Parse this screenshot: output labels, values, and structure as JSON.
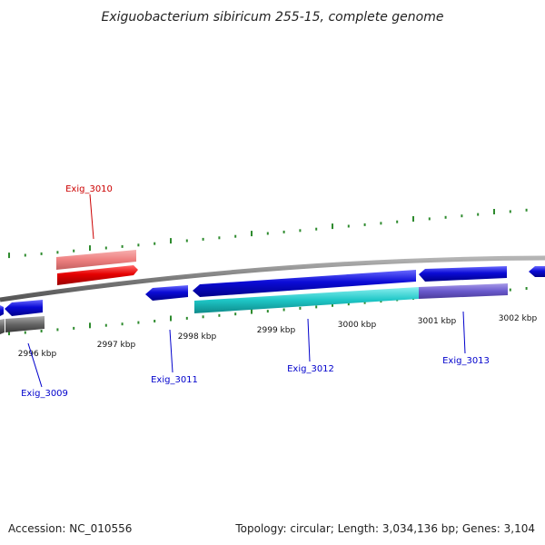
{
  "title": "Exiguobacterium sibiricum 255-15, complete genome",
  "footer": {
    "accession": "Accession: NC_010556",
    "summary": "Topology: circular; Length: 3,034,136 bp; Genes: 3,104"
  },
  "scale_labels": [
    "2996 kbp",
    "2997 kbp",
    "2998 kbp",
    "2999 kbp",
    "3000 kbp",
    "3001 kbp",
    "3002 kbp"
  ],
  "gene_labels": [
    {
      "name": "Exig_3009",
      "color": "#0000cc"
    },
    {
      "name": "Exig_3010",
      "color": "#cc0000"
    },
    {
      "name": "Exig_3011",
      "color": "#0000cc"
    },
    {
      "name": "Exig_3012",
      "color": "#0000cc"
    },
    {
      "name": "Exig_3013",
      "color": "#0000cc"
    }
  ],
  "colors": {
    "backbone": "#888888",
    "gene_blue": "#0b0bd6",
    "gene_red": "#e50000",
    "gene_pink": "#ee8080",
    "cds_cyan": "#1ec6c6",
    "cds_purple": "#6a5acd",
    "cds_gray": "#666666",
    "tick_green": "#2e8b2e"
  }
}
